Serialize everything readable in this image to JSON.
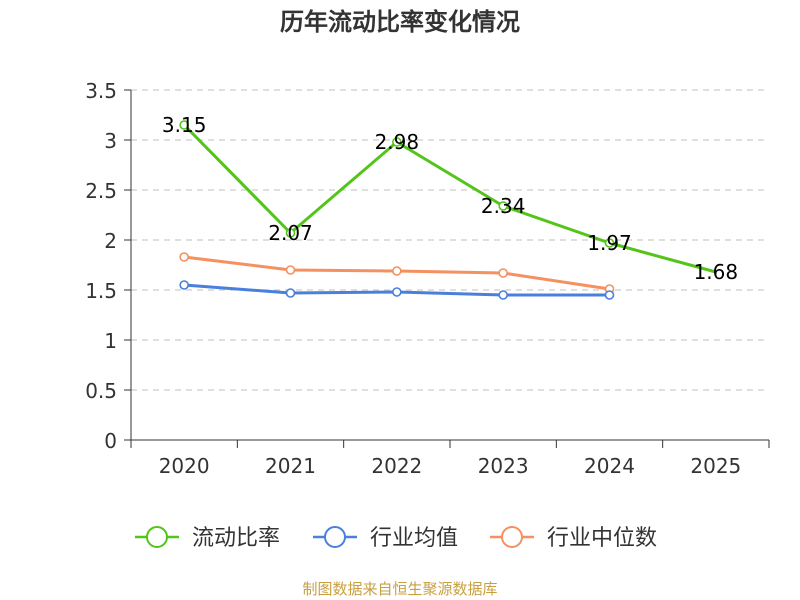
{
  "chart_data": {
    "type": "line",
    "title": "历年流动比率变化情况",
    "categories": [
      "2020",
      "2021",
      "2022",
      "2023",
      "2024",
      "2025"
    ],
    "ylim": [
      0,
      3.5
    ],
    "yticks": [
      "0",
      "0.5",
      "1",
      "1.5",
      "2",
      "2.5",
      "3",
      "3.5"
    ],
    "grid": true,
    "legend_position": "bottom",
    "series": [
      {
        "name": "流动比率",
        "color": "#52c41a",
        "values": [
          3.15,
          2.07,
          2.98,
          2.34,
          1.97,
          1.68
        ],
        "labels": [
          "3.15",
          "2.07",
          "2.98",
          "2.34",
          "1.97",
          "1.68"
        ],
        "markers": [
          true,
          true,
          true,
          true,
          true,
          false
        ]
      },
      {
        "name": "行业均值",
        "color": "#4a7fdc",
        "values": [
          1.55,
          1.47,
          1.48,
          1.45,
          1.45,
          null
        ]
      },
      {
        "name": "行业中位数",
        "color": "#f5905f",
        "values": [
          1.83,
          1.7,
          1.69,
          1.67,
          1.51,
          null
        ]
      }
    ]
  },
  "footer": {
    "text": "制图数据来自恒生聚源数据库",
    "color": "#c8a040"
  }
}
